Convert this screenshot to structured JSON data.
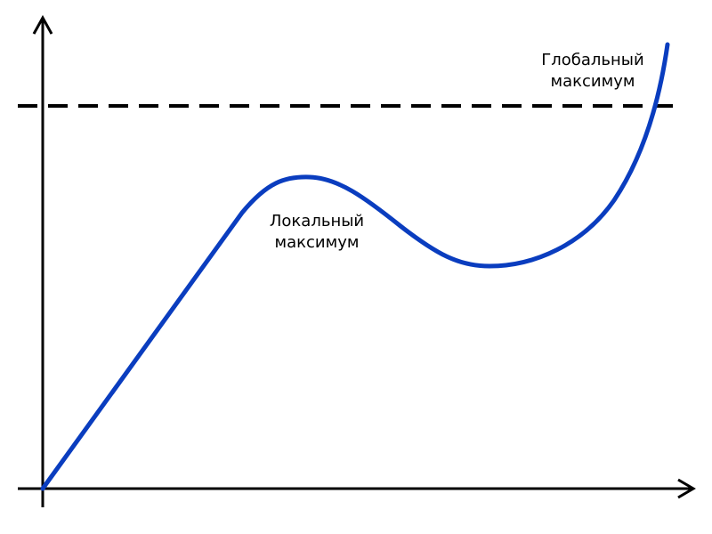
{
  "diagram": {
    "local_label_line1": "Локальный",
    "local_label_line2": "максимум",
    "global_label_line1": "Глобальный",
    "global_label_line2": "максимум"
  },
  "colors": {
    "curve": "#0a3dbf",
    "axes": "#000000",
    "dashed_line": "#000000",
    "background": "#ffffff"
  }
}
